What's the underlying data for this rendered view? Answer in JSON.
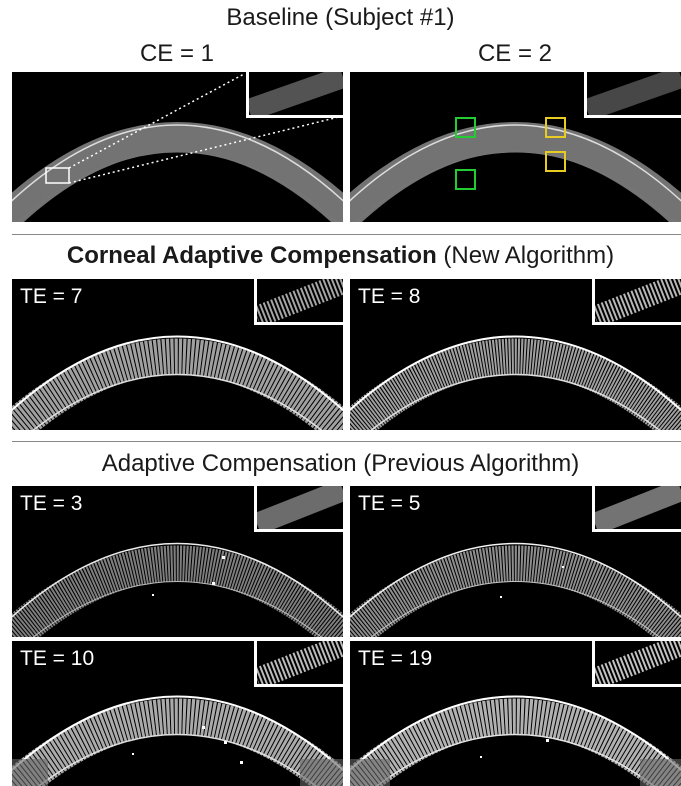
{
  "header": {
    "title": "Baseline (Subject #1)",
    "col_left": "CE = 1",
    "col_right": "CE = 2"
  },
  "section_new": {
    "title_bold": "Corneal Adaptive Compensation",
    "title_rest": " (New Algorithm)",
    "labels": [
      "TE = 7",
      "TE = 8"
    ]
  },
  "section_prev": {
    "title": "Adaptive Compensation (Previous Algorithm)",
    "labels_row1": [
      "TE = 3",
      "TE = 5"
    ],
    "labels_row2": [
      "TE = 10",
      "TE = 19"
    ]
  },
  "colors": {
    "roi_green": "#22cc33",
    "roi_yellow": "#e8cc22",
    "roi_white": "#ffffff",
    "divider": "#888888"
  }
}
